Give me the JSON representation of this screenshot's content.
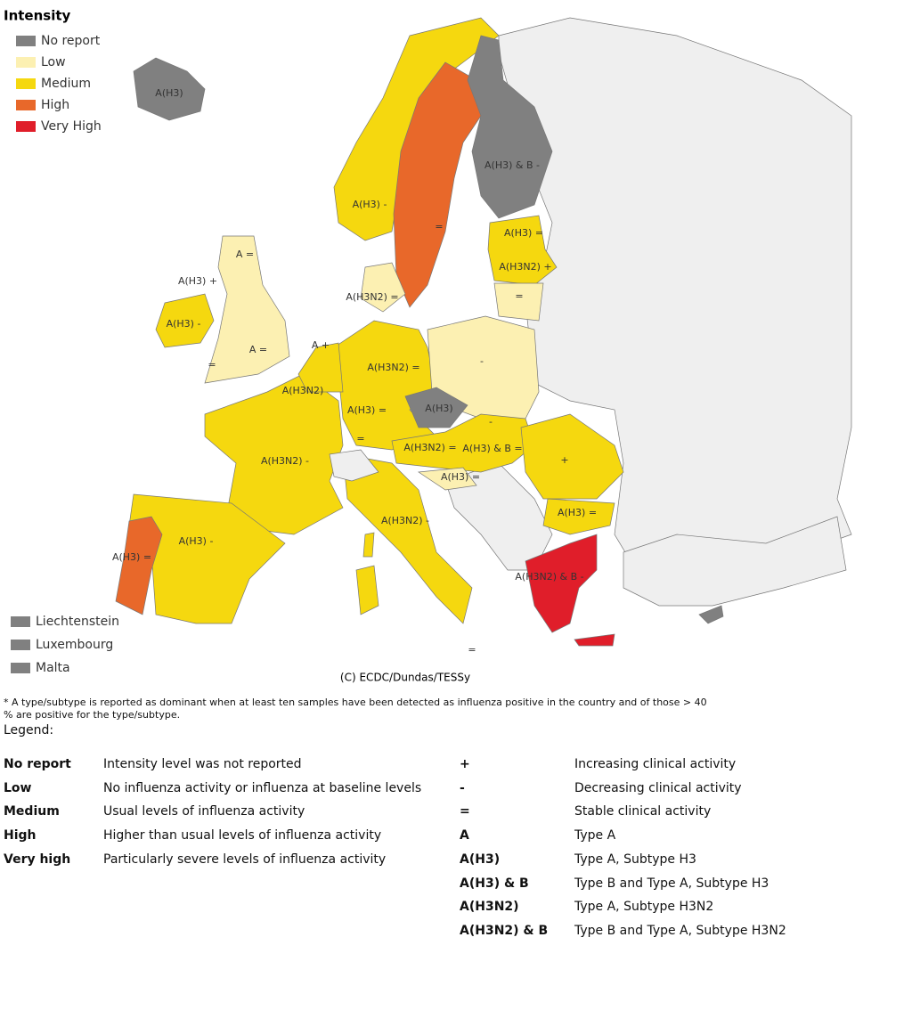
{
  "legend": {
    "title": "Intensity",
    "items": [
      {
        "label": "No report",
        "color": "#808080"
      },
      {
        "label": "Low",
        "color": "#fcf0b2"
      },
      {
        "label": "Medium",
        "color": "#f5d80f"
      },
      {
        "label": "High",
        "color": "#e8682a"
      },
      {
        "label": "Very High",
        "color": "#e01e2a"
      }
    ]
  },
  "small_states": {
    "color": "#808080",
    "items": [
      "Liechtenstein",
      "Luxembourg",
      "Malta"
    ]
  },
  "map_labels": [
    "A(H3)",
    "A(H3) & B -",
    "A(H3) -",
    "=",
    "A(H3) =",
    "A(H3N2) +",
    "=",
    "A(H3N2) =",
    "A =",
    "A(H3) +",
    "A(H3) -",
    "A =",
    "=",
    "A +",
    "A(H3N2)",
    "A(H3N2) =",
    "-",
    "A(H3)",
    "A(H3) =",
    "A(H3N2) -",
    "=",
    "A(H3N2) =",
    "-",
    "A(H3) & B =",
    "+",
    "A(H3) =",
    "A(H3) =",
    "A(H3N2) -",
    "A(H3) -",
    "A(H3) =",
    "A(H3N2) & B -",
    "="
  ],
  "credit": "(C) ECDC/Dundas/TESSy",
  "footnote": "* A type/subtype is reported as dominant when at least ten samples have been detected as influenza positive in the country and of those > 40 %  are positive for the type/subtype.",
  "legend_heading": "Legend:",
  "intensity_table": [
    [
      "No report",
      "Intensity level was not reported"
    ],
    [
      "Low",
      "No influenza activity or influenza at baseline levels"
    ],
    [
      "Medium",
      "Usual levels of influenza activity"
    ],
    [
      "High",
      "Higher than usual levels of influenza activity"
    ],
    [
      "Very high",
      "Particularly severe levels of influenza activity"
    ]
  ],
  "symbol_table": [
    [
      "+",
      "Increasing clinical activity"
    ],
    [
      "-",
      "Decreasing clinical activity"
    ],
    [
      "=",
      "Stable clinical activity"
    ],
    [
      "A",
      "Type A"
    ],
    [
      "A(H3)",
      "Type A, Subtype H3"
    ],
    [
      "A(H3) & B",
      "Type B and Type A, Subtype H3"
    ],
    [
      "A(H3N2)",
      "Type A, Subtype H3N2"
    ],
    [
      "A(H3N2) & B",
      "Type B and Type A, Subtype H3N2"
    ]
  ]
}
